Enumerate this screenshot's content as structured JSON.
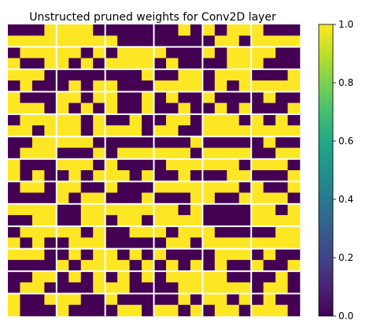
{
  "chart_data": {
    "type": "heatmap",
    "title": "Unstructed pruned weights for Conv2D layer",
    "xlabel": "",
    "ylabel": "",
    "columns": 24,
    "rows": 26,
    "column_groups": 6,
    "column_group_size": 4,
    "row_groups": 13,
    "row_group_size": 2,
    "value_range": [
      0,
      1
    ],
    "colormap": "viridis",
    "colors": {
      "low": "#440154",
      "high": "#fde725"
    },
    "colorbar": {
      "ticks": [
        0.0,
        0.2,
        0.4,
        0.6,
        0.8,
        1.0
      ],
      "tick_labels": [
        "0.0",
        "0.2",
        "0.4",
        "0.6",
        "0.8",
        "1.0"
      ]
    },
    "axes_visible": false,
    "separator_color": "#ffffff",
    "values": [
      [
        0,
        0,
        0,
        1,
        1,
        1,
        1,
        0,
        0,
        0,
        0,
        0,
        0,
        0,
        1,
        0,
        1,
        0,
        1,
        1,
        1,
        0,
        0,
        0
      ],
      [
        1,
        1,
        1,
        1,
        1,
        1,
        1,
        1,
        1,
        0,
        0,
        0,
        0,
        0,
        0,
        0,
        0,
        1,
        1,
        0,
        1,
        1,
        1,
        1
      ],
      [
        0,
        1,
        1,
        1,
        1,
        1,
        0,
        1,
        0,
        1,
        1,
        1,
        1,
        0,
        0,
        0,
        1,
        0,
        1,
        1,
        1,
        1,
        0,
        0
      ],
      [
        1,
        0,
        0,
        1,
        1,
        0,
        1,
        0,
        1,
        1,
        1,
        1,
        0,
        1,
        0,
        0,
        0,
        0,
        1,
        1,
        1,
        0,
        0,
        0
      ],
      [
        1,
        1,
        1,
        0,
        0,
        0,
        0,
        0,
        0,
        0,
        0,
        1,
        0,
        0,
        1,
        1,
        0,
        1,
        1,
        1,
        0,
        0,
        0,
        1
      ],
      [
        0,
        1,
        0,
        0,
        0,
        1,
        0,
        1,
        1,
        0,
        0,
        0,
        1,
        1,
        1,
        1,
        0,
        1,
        0,
        1,
        1,
        1,
        1,
        1
      ],
      [
        1,
        0,
        0,
        0,
        1,
        1,
        0,
        1,
        1,
        0,
        0,
        1,
        0,
        1,
        0,
        0,
        1,
        0,
        0,
        0,
        0,
        1,
        0,
        0
      ],
      [
        1,
        1,
        1,
        0,
        1,
        0,
        1,
        0,
        1,
        0,
        0,
        1,
        0,
        0,
        1,
        0,
        0,
        1,
        0,
        1,
        0,
        0,
        0,
        1
      ],
      [
        0,
        1,
        1,
        1,
        1,
        1,
        0,
        1,
        0,
        0,
        1,
        0,
        0,
        1,
        1,
        0,
        1,
        1,
        1,
        0,
        1,
        0,
        1,
        0
      ],
      [
        1,
        1,
        0,
        1,
        1,
        1,
        0,
        1,
        1,
        1,
        1,
        0,
        1,
        1,
        0,
        0,
        1,
        1,
        1,
        1,
        1,
        1,
        1,
        1
      ],
      [
        0,
        0,
        1,
        1,
        1,
        1,
        1,
        0,
        0,
        0,
        0,
        0,
        0,
        0,
        0,
        1,
        0,
        0,
        0,
        0,
        0,
        1,
        0,
        0
      ],
      [
        0,
        1,
        1,
        1,
        0,
        0,
        0,
        1,
        0,
        1,
        1,
        1,
        1,
        1,
        1,
        0,
        1,
        1,
        1,
        1,
        0,
        0,
        1,
        1
      ],
      [
        1,
        0,
        0,
        0,
        1,
        1,
        1,
        0,
        1,
        0,
        0,
        0,
        0,
        1,
        1,
        1,
        1,
        1,
        1,
        0,
        1,
        1,
        1,
        0
      ],
      [
        1,
        0,
        1,
        0,
        0,
        1,
        0,
        1,
        1,
        1,
        0,
        1,
        0,
        0,
        1,
        0,
        0,
        0,
        1,
        1,
        0,
        0,
        0,
        1
      ],
      [
        0,
        1,
        1,
        0,
        1,
        1,
        0,
        0,
        1,
        0,
        0,
        0,
        1,
        1,
        1,
        1,
        1,
        1,
        1,
        0,
        1,
        0,
        0,
        1
      ],
      [
        0,
        0,
        0,
        0,
        1,
        0,
        1,
        1,
        0,
        0,
        0,
        1,
        0,
        0,
        0,
        1,
        1,
        0,
        0,
        1,
        1,
        1,
        1,
        0
      ],
      [
        1,
        1,
        1,
        1,
        0,
        0,
        1,
        1,
        1,
        1,
        1,
        1,
        1,
        1,
        0,
        1,
        0,
        0,
        0,
        0,
        1,
        1,
        0,
        1
      ],
      [
        0,
        0,
        1,
        1,
        0,
        0,
        1,
        1,
        0,
        1,
        1,
        0,
        1,
        1,
        1,
        1,
        0,
        0,
        0,
        0,
        1,
        1,
        1,
        1
      ],
      [
        0,
        1,
        1,
        1,
        1,
        1,
        0,
        1,
        0,
        0,
        1,
        1,
        1,
        0,
        1,
        1,
        1,
        0,
        0,
        0,
        0,
        0,
        1,
        1
      ],
      [
        1,
        0,
        1,
        0,
        0,
        1,
        1,
        1,
        0,
        0,
        0,
        0,
        0,
        1,
        1,
        0,
        1,
        1,
        1,
        1,
        1,
        1,
        1,
        1
      ],
      [
        1,
        1,
        1,
        0,
        0,
        1,
        0,
        1,
        1,
        0,
        1,
        0,
        1,
        0,
        0,
        0,
        0,
        1,
        1,
        1,
        0,
        1,
        0,
        0
      ],
      [
        0,
        0,
        0,
        0,
        1,
        0,
        1,
        1,
        1,
        1,
        0,
        1,
        0,
        1,
        0,
        1,
        0,
        1,
        0,
        0,
        1,
        0,
        0,
        1
      ],
      [
        0,
        0,
        1,
        1,
        0,
        1,
        0,
        1,
        0,
        1,
        0,
        1,
        0,
        1,
        1,
        1,
        1,
        1,
        0,
        0,
        0,
        0,
        1,
        0
      ],
      [
        0,
        1,
        1,
        0,
        0,
        0,
        0,
        1,
        1,
        1,
        0,
        0,
        0,
        0,
        1,
        1,
        1,
        1,
        1,
        1,
        0,
        1,
        1,
        0
      ],
      [
        1,
        0,
        0,
        1,
        1,
        1,
        0,
        0,
        1,
        0,
        0,
        0,
        0,
        0,
        1,
        0,
        1,
        1,
        0,
        1,
        0,
        1,
        0,
        0
      ],
      [
        1,
        0,
        0,
        0,
        1,
        0,
        0,
        0,
        0,
        1,
        1,
        0,
        1,
        1,
        0,
        1,
        0,
        1,
        1,
        0,
        1,
        1,
        1,
        0
      ]
    ]
  }
}
